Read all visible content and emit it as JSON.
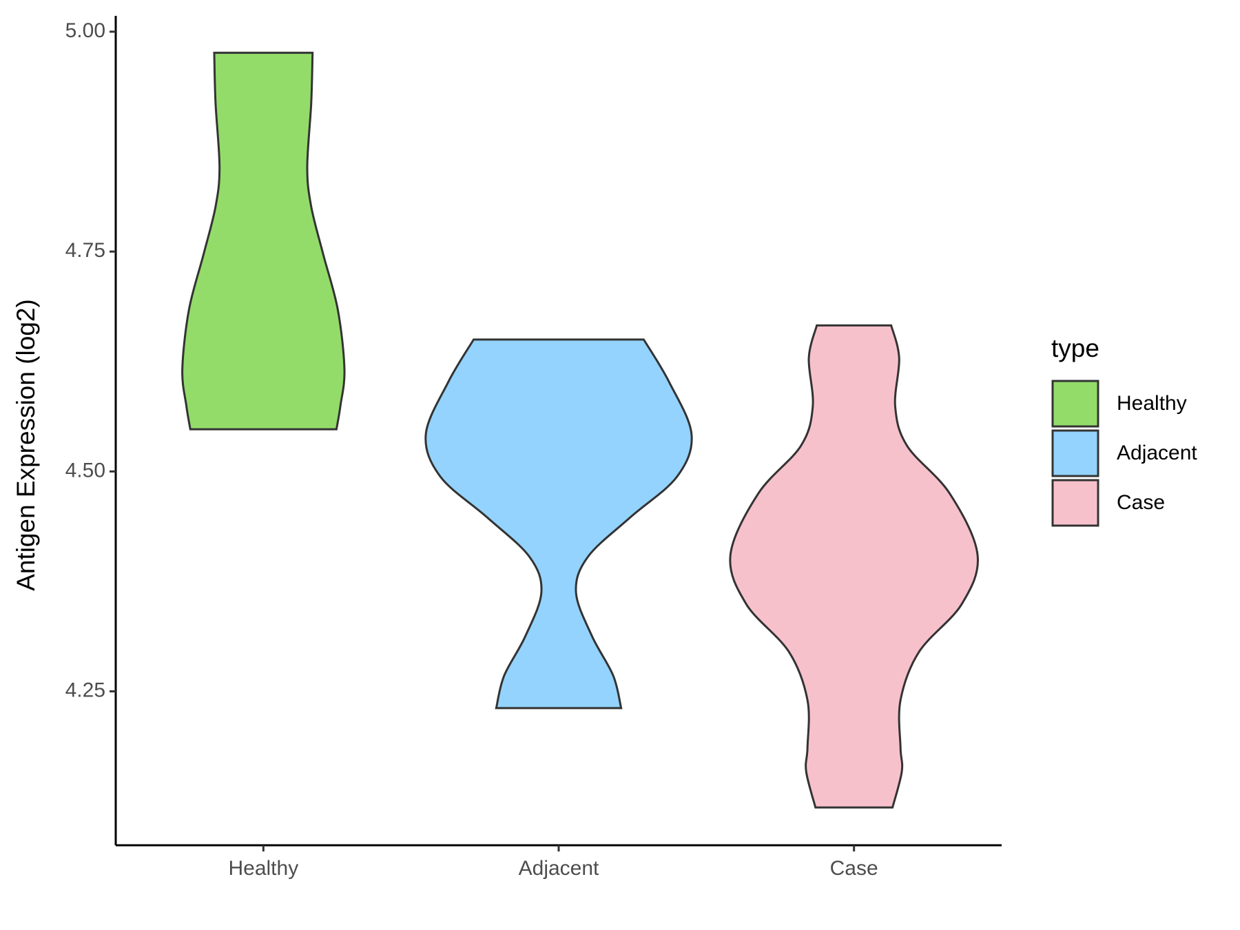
{
  "chart_data": {
    "type": "violin",
    "y_label": "Antigen Expression (log2)",
    "categories": [
      "Healthy",
      "Adjacent",
      "Case"
    ],
    "ylim": [
      4.075,
      5.018
    ],
    "yticks": [
      {
        "value": 4.25,
        "label": "4.25"
      },
      {
        "value": 4.5,
        "label": "4.50"
      },
      {
        "value": 4.75,
        "label": "4.75"
      },
      {
        "value": 5,
        "label": "5.00"
      }
    ],
    "legend_title": "type",
    "legend_position": "right",
    "series": [
      {
        "name": "Healthy",
        "color": "#93dc6a",
        "y": [
          4.976,
          4.919,
          4.846,
          4.801,
          4.747,
          4.684,
          4.616,
          4.575,
          4.548
        ],
        "density": [
          0.37,
          0.36,
          0.33,
          0.36,
          0.45,
          0.56,
          0.61,
          0.58,
          0.55
        ]
      },
      {
        "name": "Adjacent",
        "color": "#93d3fd",
        "y": [
          4.65,
          4.602,
          4.542,
          4.494,
          4.448,
          4.403,
          4.363,
          4.313,
          4.268,
          4.231
        ],
        "density": [
          0.64,
          0.83,
          1.0,
          0.89,
          0.54,
          0.22,
          0.13,
          0.25,
          0.41,
          0.47
        ]
      },
      {
        "name": "Case",
        "color": "#f7c1cc",
        "y": [
          4.666,
          4.629,
          4.574,
          4.529,
          4.475,
          4.405,
          4.349,
          4.295,
          4.24,
          4.186,
          4.159,
          4.118
        ],
        "density": [
          0.28,
          0.34,
          0.31,
          0.4,
          0.72,
          0.93,
          0.81,
          0.49,
          0.35,
          0.35,
          0.36,
          0.29
        ]
      }
    ]
  }
}
